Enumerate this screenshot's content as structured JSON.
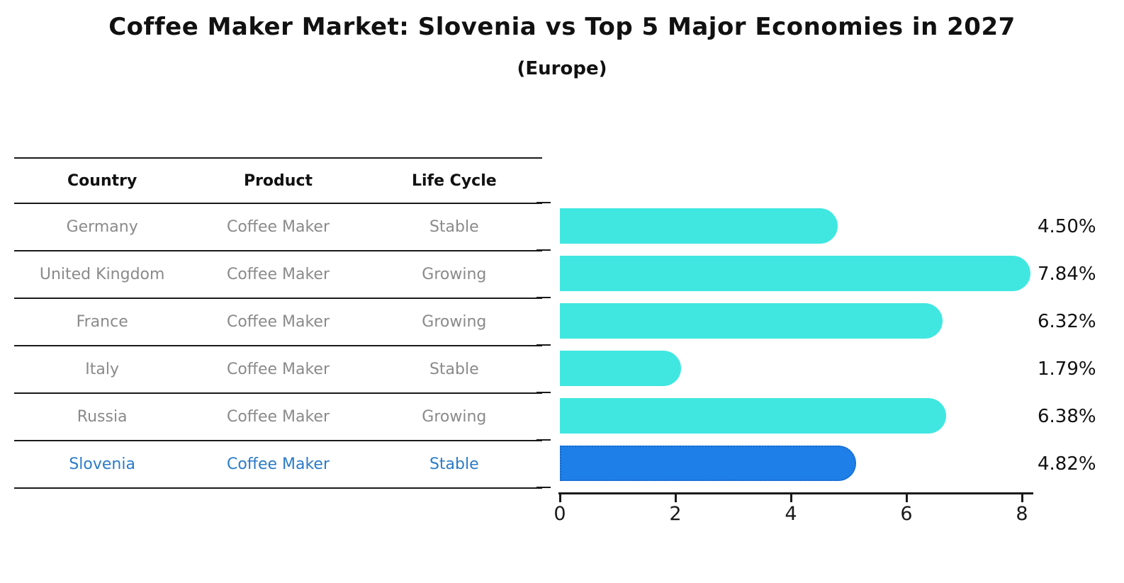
{
  "title": "Coffee Maker Market: Slovenia vs Top 5 Major Economies in 2027",
  "subtitle": "(Europe)",
  "table": {
    "headers": [
      "Country",
      "Product",
      "Life Cycle"
    ],
    "rows": [
      {
        "country": "Germany",
        "product": "Coffee Maker",
        "life_cycle": "Stable",
        "highlight": false
      },
      {
        "country": "United Kingdom",
        "product": "Coffee Maker",
        "life_cycle": "Growing",
        "highlight": false
      },
      {
        "country": "France",
        "product": "Coffee Maker",
        "life_cycle": "Growing",
        "highlight": false
      },
      {
        "country": "Italy",
        "product": "Coffee Maker",
        "life_cycle": "Stable",
        "highlight": false
      },
      {
        "country": "Russia",
        "product": "Coffee Maker",
        "life_cycle": "Growing",
        "highlight": false
      },
      {
        "country": "Slovenia",
        "product": "Coffee Maker",
        "life_cycle": "Stable",
        "highlight": true
      }
    ]
  },
  "chart_data": {
    "type": "bar",
    "orientation": "horizontal",
    "title": "Coffee Maker Market: Slovenia vs Top 5 Major Economies in 2027 (Europe)",
    "categories": [
      "Germany",
      "United Kingdom",
      "France",
      "Italy",
      "Russia",
      "Slovenia"
    ],
    "values": [
      4.5,
      7.84,
      6.32,
      1.79,
      6.38,
      4.82
    ],
    "value_labels": [
      "4.50%",
      "7.84%",
      "6.32%",
      "1.79%",
      "6.38%",
      "4.82%"
    ],
    "highlight_index": 5,
    "xlabel": "",
    "ylabel": "",
    "xlim": [
      0,
      8.3
    ],
    "xticks": [
      0,
      2,
      4,
      6,
      8
    ],
    "grid": false,
    "legend": false
  },
  "colors": {
    "bar": "#40E7E0",
    "highlight_bar": "#1F7FE8",
    "highlight_bar_border": "#1668C8",
    "row_text": "#8a8a8a",
    "highlight_text": "#2B7BC9",
    "line": "#1a1a1a"
  }
}
